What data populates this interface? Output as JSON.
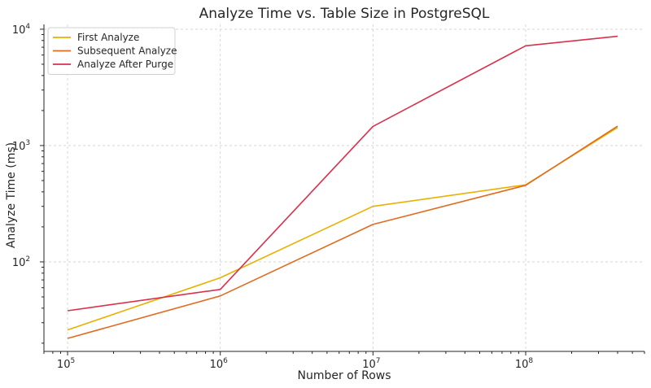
{
  "chart_data": {
    "type": "line",
    "title": "Analyze Time vs. Table Size in PostgreSQL",
    "xlabel": "Number of Rows",
    "ylabel": "Analyze Time (ms)",
    "xscale": "log",
    "yscale": "log",
    "xlim": [
      70000,
      600000000
    ],
    "ylim": [
      17,
      11000
    ],
    "x": [
      100000,
      1000000,
      10000000,
      100000000,
      400000000
    ],
    "xticks": [
      {
        "value": 100000,
        "base": "10",
        "exp": "5"
      },
      {
        "value": 1000000,
        "base": "10",
        "exp": "6"
      },
      {
        "value": 10000000,
        "base": "10",
        "exp": "7"
      },
      {
        "value": 100000000,
        "base": "10",
        "exp": "8"
      }
    ],
    "yticks": [
      {
        "value": 100,
        "base": "10",
        "exp": "2"
      },
      {
        "value": 1000,
        "base": "10",
        "exp": "3"
      },
      {
        "value": 10000,
        "base": "10",
        "exp": "4"
      }
    ],
    "grid": true,
    "legend_position": "top-left",
    "series": [
      {
        "name": "First Analyze",
        "color": "#e8b100",
        "values": [
          26,
          73,
          300,
          460,
          1430
        ]
      },
      {
        "name": "Subsequent Analyze",
        "color": "#e06b1f",
        "values": [
          22,
          51,
          210,
          455,
          1470
        ]
      },
      {
        "name": "Analyze After Purge",
        "color": "#d9304d",
        "values": [
          38,
          58,
          1460,
          7200,
          8700
        ]
      }
    ]
  }
}
